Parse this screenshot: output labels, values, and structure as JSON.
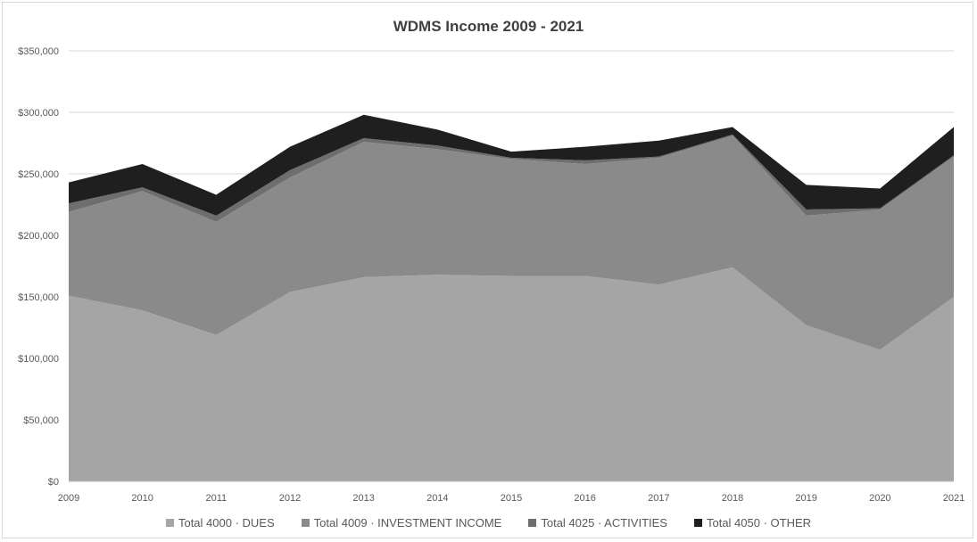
{
  "chart_data": {
    "type": "area",
    "stacked": true,
    "title": "WDMS Income 2009 - 2021",
    "xlabel": "",
    "ylabel": "",
    "ylim": [
      0,
      350000
    ],
    "yticks": [
      "$0",
      "$50,000",
      "$100,000",
      "$150,000",
      "$200,000",
      "$250,000",
      "$300,000",
      "$350,000"
    ],
    "ytick_values": [
      0,
      50000,
      100000,
      150000,
      200000,
      250000,
      300000,
      350000
    ],
    "grid": true,
    "legend_position": "bottom",
    "categories": [
      "2009",
      "2010",
      "2011",
      "2012",
      "2013",
      "2014",
      "2015",
      "2016",
      "2017",
      "2018",
      "2019",
      "2020",
      "2021"
    ],
    "series": [
      {
        "name": "Total 4000 · DUES",
        "color": "#a5a5a5",
        "values": [
          151000,
          139000,
          119000,
          154000,
          166000,
          168000,
          167000,
          167000,
          160000,
          174000,
          127000,
          107000,
          150000
        ]
      },
      {
        "name": "Total 4009 · INVESTMENT INCOME",
        "color": "#8a8a8a",
        "values": [
          68000,
          97000,
          92000,
          93000,
          110000,
          102000,
          95000,
          91000,
          103000,
          107000,
          89000,
          114000,
          114000
        ]
      },
      {
        "name": "Total 4025 · ACTIVITIES",
        "color": "#6e6e6e",
        "values": [
          7000,
          3000,
          5000,
          6000,
          3000,
          3000,
          1000,
          3000,
          1000,
          1000,
          5000,
          1000,
          1000
        ]
      },
      {
        "name": "Total 4050 · OTHER",
        "color": "#1f1f1f",
        "values": [
          17000,
          19000,
          17000,
          19000,
          19000,
          13000,
          5000,
          11000,
          13000,
          6000,
          20000,
          16000,
          23000
        ]
      }
    ]
  }
}
